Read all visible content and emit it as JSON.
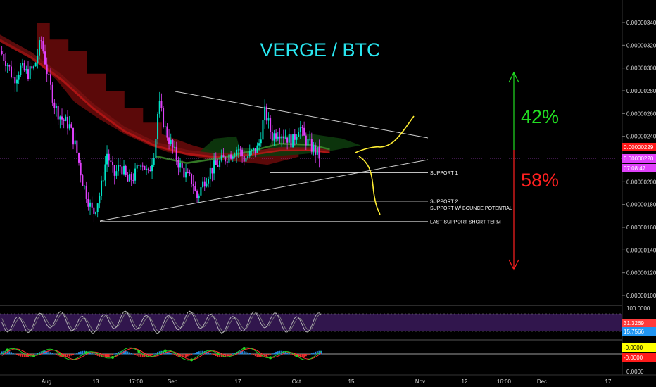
{
  "chart_data": {
    "type": "candlestick",
    "title": "VERGE / BTC",
    "symbol": "XVG/BTC",
    "y_axis": {
      "ticks": [
        "0.00000340",
        "0.00000320",
        "0.00000300",
        "0.00000280",
        "0.00000260",
        "0.00000240",
        "0.00000200",
        "0.00000180",
        "0.00000160",
        "0.00000140",
        "0.00000120",
        "0.00000100"
      ],
      "range": [
        9e-07,
        3.5e-06
      ],
      "position": "right"
    },
    "x_axis": {
      "ticks": [
        "Aug",
        "13",
        "17:00",
        "Sep",
        "17",
        "Oct",
        "15",
        "Nov",
        "12",
        "16:00",
        "Dec",
        "17"
      ]
    },
    "price_labels": [
      {
        "name": "last-close",
        "text": "0.00000229",
        "bg": "#ff1a1a",
        "fg": "#ffffff"
      },
      {
        "name": "current",
        "text": "0.00000220",
        "bg": "#e040fb",
        "fg": "#ffffff"
      },
      {
        "name": "countdown",
        "text": "07:08:47",
        "bg": "#e040fb",
        "fg": "#ffffff"
      }
    ],
    "price_series": {
      "description": "approximate close path of the candles",
      "points": [
        [
          3e-06,
          3.15e-06
        ],
        [
          0.011,
          3.05e-06
        ],
        [
          0.022,
          2.9e-06
        ],
        [
          0.033,
          3e-06
        ],
        [
          0.044,
          2.95e-06
        ],
        [
          0.055,
          3e-06
        ],
        [
          0.066,
          3.25e-06
        ],
        [
          0.078,
          2.9e-06
        ],
        [
          0.089,
          2.65e-06
        ],
        [
          0.1,
          2.55e-06
        ],
        [
          0.111,
          2.5e-06
        ],
        [
          0.122,
          2.3e-06
        ],
        [
          0.133,
          2e-06
        ],
        [
          0.144,
          1.8e-06
        ],
        [
          0.15,
          1.72e-06
        ],
        [
          0.161,
          1.9e-06
        ],
        [
          0.172,
          2.25e-06
        ],
        [
          0.183,
          2.05e-06
        ],
        [
          0.194,
          2.15e-06
        ],
        [
          0.205,
          2e-06
        ],
        [
          0.216,
          2.05e-06
        ],
        [
          0.227,
          2.2e-06
        ],
        [
          0.238,
          2.05e-06
        ],
        [
          0.249,
          2.3e-06
        ],
        [
          0.255,
          2.7e-06
        ],
        [
          0.266,
          2.45e-06
        ],
        [
          0.277,
          2.3e-06
        ],
        [
          0.288,
          2.15e-06
        ],
        [
          0.299,
          2.05e-06
        ],
        [
          0.31,
          2e-06
        ],
        [
          0.316,
          1.85e-06
        ],
        [
          0.327,
          2e-06
        ],
        [
          0.338,
          2.1e-06
        ],
        [
          0.349,
          2.15e-06
        ],
        [
          0.36,
          2.2e-06
        ],
        [
          0.371,
          2.25e-06
        ],
        [
          0.382,
          2.3e-06
        ],
        [
          0.393,
          2.2e-06
        ],
        [
          0.404,
          2.25e-06
        ],
        [
          0.415,
          2.3e-06
        ],
        [
          0.426,
          2.62e-06
        ],
        [
          0.437,
          2.4e-06
        ],
        [
          0.448,
          2.45e-06
        ],
        [
          0.459,
          2.4e-06
        ],
        [
          0.47,
          2.35e-06
        ],
        [
          0.481,
          2.5e-06
        ],
        [
          0.487,
          2.4e-06
        ],
        [
          0.498,
          2.32e-06
        ],
        [
          0.51,
          2.25e-06
        ],
        [
          0.516,
          2.2e-06
        ]
      ]
    },
    "annotations": {
      "support_levels": [
        {
          "label": "SUPPORT 1",
          "value": 2.08e-06
        },
        {
          "label": "SUPPORT 2",
          "value": 1.83e-06
        },
        {
          "label": "SUPPORT W/ BOUNCE POTENTIAL",
          "value": 1.77e-06
        },
        {
          "label": "LAST SUPPORT SHORT TERM",
          "value": 1.65e-06
        }
      ],
      "upside_percent": "42%",
      "downside_percent": "58%",
      "upside_color": "#22dd22",
      "downside_color": "#ff2020",
      "trendline_color": "#cfcfcf",
      "projection_color": "#ffee33"
    },
    "rsi_panel": {
      "ticks": [
        "100.0000"
      ],
      "labels": [
        {
          "text": "31.3269",
          "bg": "#ff3b3b",
          "fg": "#ffffff"
        },
        {
          "text": "15.7566",
          "bg": "#2196f3",
          "fg": "#ffffff"
        }
      ],
      "band_color": "#3a1a5a"
    },
    "macd_panel": {
      "labels": [
        {
          "text": "-0.0000",
          "bg": "#ffff00",
          "fg": "#000000"
        },
        {
          "text": "-0.0000",
          "bg": "#ff1a1a",
          "fg": "#ffffff"
        }
      ],
      "bottom_tick": "0.0000"
    },
    "colors": {
      "background": "#000000",
      "bull": "#00e5c8",
      "bear": "#e040fb",
      "cloud_bear": "#6b0a0a",
      "cloud_bull": "#0d3a0d",
      "title": "#29e6f0"
    }
  }
}
